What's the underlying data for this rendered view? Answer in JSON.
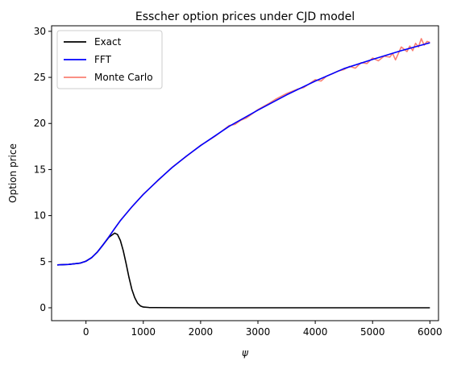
{
  "chart_data": {
    "type": "line",
    "title": "Esscher option prices under CJD model",
    "xlabel": "ψ",
    "ylabel": "Option price",
    "xlim": [
      -600,
      6150
    ],
    "ylim": [
      -1.4,
      30.6
    ],
    "xticks": [
      0,
      1000,
      2000,
      3000,
      4000,
      5000,
      6000
    ],
    "yticks": [
      0,
      5,
      10,
      15,
      20,
      25,
      30
    ],
    "grid": false,
    "legend_position": "top-left",
    "series": [
      {
        "name": "Exact",
        "color": "#000000",
        "x": [
          -500,
          -300,
          -100,
          0,
          100,
          200,
          300,
          400,
          500,
          550,
          600,
          650,
          700,
          750,
          800,
          850,
          900,
          950,
          1000,
          1100,
          1200,
          1500,
          2000,
          3000,
          4000,
          5000,
          6000
        ],
        "y": [
          4.65,
          4.7,
          4.85,
          5.05,
          5.45,
          6.05,
          6.85,
          7.65,
          8.1,
          7.95,
          7.3,
          6.2,
          4.8,
          3.3,
          2.0,
          1.1,
          0.5,
          0.2,
          0.08,
          0.03,
          0.02,
          0.01,
          0.0,
          0.0,
          0.0,
          0.0,
          0.0
        ]
      },
      {
        "name": "FFT",
        "color": "#0000ff",
        "x": [
          -500,
          -300,
          -100,
          0,
          100,
          200,
          300,
          400,
          500,
          600,
          800,
          1000,
          1250,
          1500,
          1750,
          2000,
          2500,
          3000,
          3500,
          4000,
          4500,
          5000,
          5500,
          6000
        ],
        "y": [
          4.65,
          4.7,
          4.85,
          5.05,
          5.45,
          6.05,
          6.85,
          7.7,
          8.6,
          9.45,
          10.95,
          12.3,
          13.8,
          15.2,
          16.45,
          17.6,
          19.7,
          21.45,
          23.1,
          24.6,
          25.95,
          26.95,
          27.9,
          28.75
        ]
      },
      {
        "name": "Monte Carlo",
        "color": "#fa8072",
        "x": [
          -500,
          -300,
          -100,
          0,
          100,
          200,
          300,
          400,
          500,
          600,
          800,
          1000,
          1250,
          1500,
          1750,
          2000,
          2250,
          2500,
          2600,
          2700,
          2800,
          3000,
          3200,
          3300,
          3500,
          3700,
          3800,
          4000,
          4100,
          4200,
          4300,
          4400,
          4500,
          4600,
          4700,
          4800,
          4900,
          5000,
          5100,
          5200,
          5300,
          5350,
          5400,
          5500,
          5600,
          5650,
          5700,
          5750,
          5800,
          5850,
          5900,
          5950,
          6000
        ],
        "y": [
          4.65,
          4.72,
          4.83,
          5.07,
          5.43,
          6.07,
          6.83,
          7.72,
          8.58,
          9.48,
          10.93,
          12.32,
          13.77,
          15.23,
          16.42,
          17.63,
          18.6,
          19.78,
          19.9,
          20.35,
          20.6,
          21.5,
          22.2,
          22.6,
          23.25,
          23.75,
          23.9,
          24.75,
          24.6,
          25.15,
          25.4,
          25.7,
          25.85,
          26.2,
          26.0,
          26.6,
          26.5,
          27.1,
          26.8,
          27.3,
          27.2,
          27.6,
          26.9,
          28.3,
          27.8,
          28.4,
          27.9,
          28.7,
          28.3,
          29.2,
          28.5,
          28.9,
          28.8
        ]
      }
    ]
  }
}
